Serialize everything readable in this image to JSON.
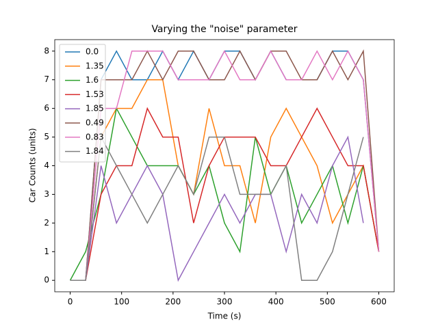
{
  "chart_data": {
    "type": "line",
    "title": "Varying the \"noise\" parameter",
    "xlabel": "Time (s)",
    "ylabel": "Car Counts (units)",
    "x": [
      0,
      30,
      60,
      90,
      120,
      150,
      180,
      210,
      240,
      270,
      300,
      330,
      360,
      390,
      420,
      450,
      480,
      510,
      540,
      570,
      600
    ],
    "series": [
      {
        "name": "0.0",
        "color": "#1f77b4",
        "values": [
          0,
          0,
          7,
          8,
          7,
          7,
          8,
          7,
          8,
          7,
          8,
          8,
          7,
          8,
          7,
          7,
          7,
          8,
          8,
          7,
          1
        ]
      },
      {
        "name": "1.35",
        "color": "#ff7f0e",
        "values": [
          0,
          0,
          5,
          6,
          6,
          7,
          7,
          4,
          3,
          6,
          4,
          4,
          2,
          5,
          6,
          5,
          4,
          2,
          3,
          4,
          1
        ]
      },
      {
        "name": "1.6",
        "color": "#2ca02c",
        "values": [
          0,
          1,
          3,
          6,
          5,
          4,
          4,
          4,
          3,
          4,
          2,
          1,
          5,
          3,
          4,
          2,
          3,
          4,
          2,
          4,
          1
        ]
      },
      {
        "name": "1.53",
        "color": "#d62728",
        "values": [
          0,
          0,
          3,
          4,
          4,
          6,
          5,
          5,
          2,
          4,
          5,
          5,
          5,
          4,
          4,
          5,
          6,
          5,
          4,
          4,
          1
        ]
      },
      {
        "name": "1.85",
        "color": "#9467bd",
        "values": [
          0,
          0,
          4,
          2,
          3,
          4,
          3,
          0,
          1,
          2,
          3,
          2,
          3,
          3,
          1,
          3,
          2,
          4,
          5,
          2,
          null
        ]
      },
      {
        "name": "0.49",
        "color": "#8c564b",
        "values": [
          0,
          0,
          7,
          7,
          7,
          8,
          7,
          8,
          8,
          7,
          7,
          8,
          7,
          8,
          8,
          7,
          7,
          8,
          7,
          8,
          1
        ]
      },
      {
        "name": "0.83",
        "color": "#e377c2",
        "values": [
          0,
          0,
          6,
          6,
          8,
          8,
          8,
          7,
          7,
          7,
          8,
          7,
          7,
          8,
          7,
          7,
          8,
          7,
          8,
          7,
          1
        ]
      },
      {
        "name": "1.84",
        "color": "#7f7f7f",
        "values": [
          0,
          0,
          5,
          4,
          3,
          2,
          3,
          4,
          3,
          5,
          5,
          3,
          3,
          3,
          4,
          0,
          0,
          1,
          3,
          5,
          null
        ]
      }
    ],
    "xlim": [
      -30,
      630
    ],
    "ylim": [
      -0.4,
      8.4
    ],
    "xticks": [
      0,
      100,
      200,
      300,
      400,
      500,
      600
    ],
    "yticks": [
      0,
      1,
      2,
      3,
      4,
      5,
      6,
      7,
      8
    ],
    "legend": "upper left"
  }
}
